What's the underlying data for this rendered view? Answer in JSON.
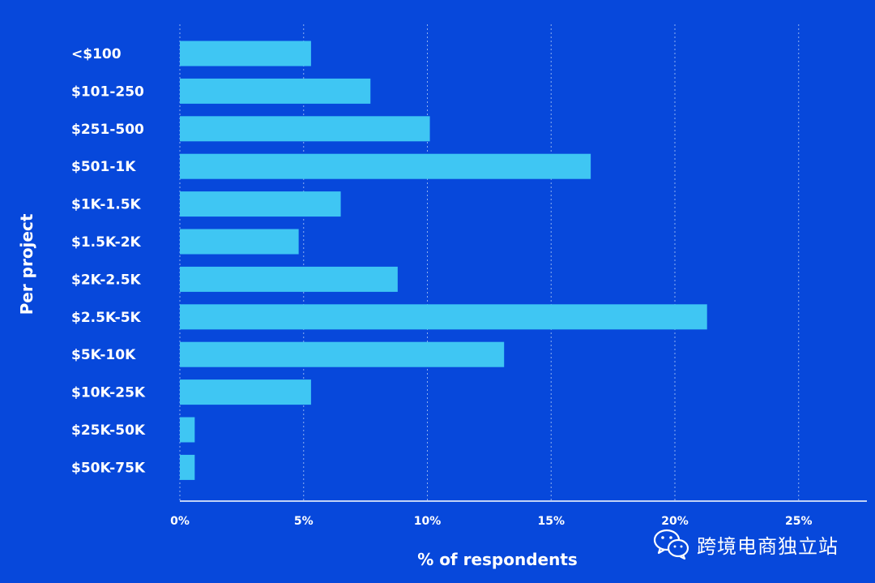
{
  "chart_data": {
    "type": "bar",
    "orientation": "horizontal",
    "categories": [
      "<$100",
      "$101-250",
      "$251-500",
      "$501-1K",
      "$1K-1.5K",
      "$1.5K-2K",
      "$2K-2.5K",
      "$2.5K-5K",
      "$5K-10K",
      "$10K-25K",
      "$25K-50K",
      "$50K-75K"
    ],
    "values": [
      5.3,
      7.7,
      10.1,
      16.6,
      6.5,
      4.8,
      8.8,
      21.3,
      13.1,
      5.3,
      0.6,
      0.6
    ],
    "xlabel": "% of respondents",
    "ylabel": "Per project",
    "xlim": [
      0,
      27.8
    ],
    "xticks": [
      0,
      5,
      10,
      15,
      20,
      25
    ],
    "xtick_labels": [
      "0%",
      "5%",
      "10%",
      "15%",
      "20%",
      "25%"
    ],
    "grid": "vertical dotted",
    "bar_color": "#3fc6f3",
    "background_color": "#0748db"
  },
  "watermark": {
    "icon": "wechat-icon",
    "text": "跨境电商独立站"
  }
}
